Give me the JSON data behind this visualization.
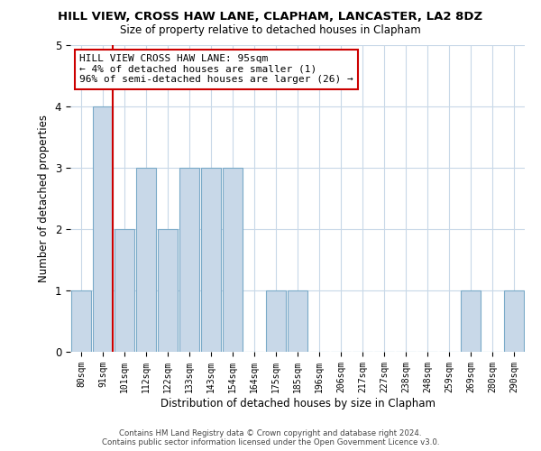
{
  "title": "HILL VIEW, CROSS HAW LANE, CLAPHAM, LANCASTER, LA2 8DZ",
  "subtitle": "Size of property relative to detached houses in Clapham",
  "xlabel": "Distribution of detached houses by size in Clapham",
  "ylabel": "Number of detached properties",
  "bin_labels": [
    "80sqm",
    "91sqm",
    "101sqm",
    "112sqm",
    "122sqm",
    "133sqm",
    "143sqm",
    "154sqm",
    "164sqm",
    "175sqm",
    "185sqm",
    "196sqm",
    "206sqm",
    "217sqm",
    "227sqm",
    "238sqm",
    "248sqm",
    "259sqm",
    "269sqm",
    "280sqm",
    "290sqm"
  ],
  "bin_counts": [
    1,
    4,
    2,
    3,
    2,
    3,
    3,
    3,
    0,
    1,
    1,
    0,
    0,
    0,
    0,
    0,
    0,
    0,
    1,
    0,
    1
  ],
  "bar_color": "#c8d8e8",
  "bar_edge_color": "#7aaac8",
  "subject_line_color": "#cc0000",
  "annotation_text": "HILL VIEW CROSS HAW LANE: 95sqm\n← 4% of detached houses are smaller (1)\n96% of semi-detached houses are larger (26) →",
  "annotation_box_color": "#ffffff",
  "annotation_box_edge_color": "#cc0000",
  "ylim": [
    0,
    5
  ],
  "yticks": [
    0,
    1,
    2,
    3,
    4,
    5
  ],
  "footer_line1": "Contains HM Land Registry data © Crown copyright and database right 2024.",
  "footer_line2": "Contains public sector information licensed under the Open Government Licence v3.0.",
  "background_color": "#ffffff",
  "grid_color": "#c8d8e8"
}
